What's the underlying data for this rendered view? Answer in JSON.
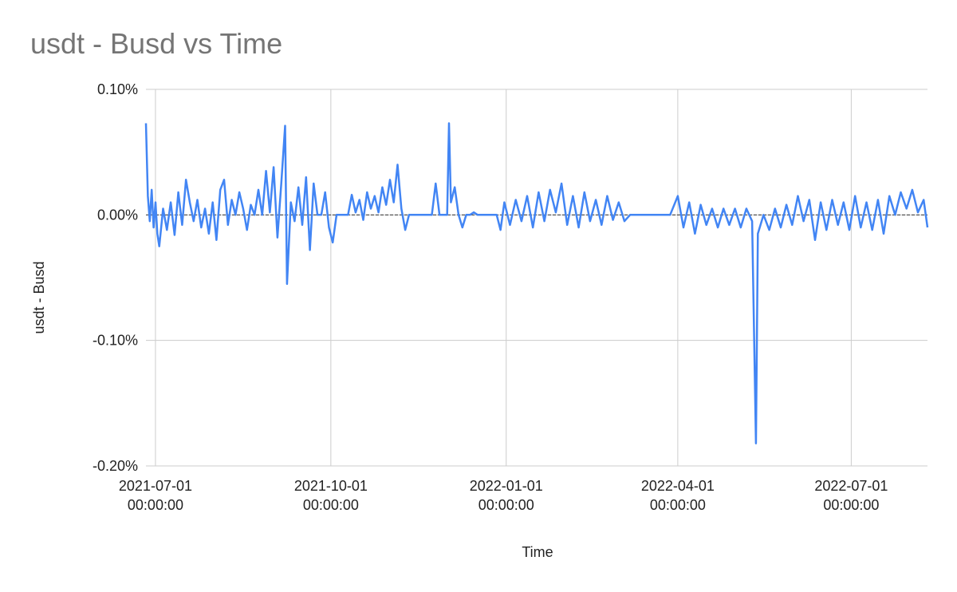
{
  "chart_data": {
    "type": "line",
    "title": "usdt - Busd vs Time",
    "xlabel": "Time",
    "ylabel": "usdt - Busd",
    "ylim": [
      -0.2,
      0.1
    ],
    "xlim": [
      "2021-06-26",
      "2022-08-10"
    ],
    "yticks": [
      {
        "value": 0.1,
        "label": "0.10%"
      },
      {
        "value": 0.0,
        "label": "0.00%"
      },
      {
        "value": -0.1,
        "label": "-0.10%"
      },
      {
        "value": -0.2,
        "label": "-0.20%"
      }
    ],
    "xticks": [
      {
        "date": "2021-07-01",
        "line1": "2021-07-01",
        "line2": "00:00:00"
      },
      {
        "date": "2021-10-01",
        "line1": "2021-10-01",
        "line2": "00:00:00"
      },
      {
        "date": "2022-01-01",
        "line1": "2022-01-01",
        "line2": "00:00:00"
      },
      {
        "date": "2022-04-01",
        "line1": "2022-04-01",
        "line2": "00:00:00"
      },
      {
        "date": "2022-07-01",
        "line1": "2022-07-01",
        "line2": "00:00:00"
      }
    ],
    "grid": true,
    "zero_line": true,
    "series": [
      {
        "color": "#4285f4",
        "points": [
          [
            "2021-06-26",
            0.073
          ],
          [
            "2021-06-27",
            0.015
          ],
          [
            "2021-06-28",
            -0.005
          ],
          [
            "2021-06-29",
            0.02
          ],
          [
            "2021-06-30",
            -0.01
          ],
          [
            "2021-07-01",
            0.01
          ],
          [
            "2021-07-02",
            -0.015
          ],
          [
            "2021-07-03",
            -0.025
          ],
          [
            "2021-07-05",
            0.005
          ],
          [
            "2021-07-07",
            -0.012
          ],
          [
            "2021-07-09",
            0.01
          ],
          [
            "2021-07-11",
            -0.016
          ],
          [
            "2021-07-13",
            0.018
          ],
          [
            "2021-07-15",
            -0.008
          ],
          [
            "2021-07-17",
            0.028
          ],
          [
            "2021-07-19",
            0.01
          ],
          [
            "2021-07-21",
            -0.005
          ],
          [
            "2021-07-23",
            0.012
          ],
          [
            "2021-07-25",
            -0.01
          ],
          [
            "2021-07-27",
            0.005
          ],
          [
            "2021-07-29",
            -0.015
          ],
          [
            "2021-07-31",
            0.01
          ],
          [
            "2021-08-02",
            -0.02
          ],
          [
            "2021-08-04",
            0.02
          ],
          [
            "2021-08-06",
            0.028
          ],
          [
            "2021-08-08",
            -0.008
          ],
          [
            "2021-08-10",
            0.012
          ],
          [
            "2021-08-12",
            0.0
          ],
          [
            "2021-08-14",
            0.018
          ],
          [
            "2021-08-16",
            0.005
          ],
          [
            "2021-08-18",
            -0.012
          ],
          [
            "2021-08-20",
            0.008
          ],
          [
            "2021-08-22",
            0.0
          ],
          [
            "2021-08-24",
            0.02
          ],
          [
            "2021-08-26",
            0.0
          ],
          [
            "2021-08-28",
            0.035
          ],
          [
            "2021-08-30",
            0.002
          ],
          [
            "2021-09-01",
            0.038
          ],
          [
            "2021-09-03",
            -0.018
          ],
          [
            "2021-09-05",
            0.025
          ],
          [
            "2021-09-07",
            0.071
          ],
          [
            "2021-09-08",
            -0.055
          ],
          [
            "2021-09-10",
            0.01
          ],
          [
            "2021-09-12",
            -0.005
          ],
          [
            "2021-09-14",
            0.022
          ],
          [
            "2021-09-16",
            -0.008
          ],
          [
            "2021-09-18",
            0.03
          ],
          [
            "2021-09-20",
            -0.028
          ],
          [
            "2021-09-22",
            0.025
          ],
          [
            "2021-09-24",
            0.0
          ],
          [
            "2021-09-26",
            0.0
          ],
          [
            "2021-09-28",
            0.018
          ],
          [
            "2021-09-30",
            -0.01
          ],
          [
            "2021-10-02",
            -0.022
          ],
          [
            "2021-10-04",
            0.0
          ],
          [
            "2021-10-06",
            0.0
          ],
          [
            "2021-10-08",
            0.0
          ],
          [
            "2021-10-10",
            0.0
          ],
          [
            "2021-10-12",
            0.016
          ],
          [
            "2021-10-14",
            0.002
          ],
          [
            "2021-10-16",
            0.012
          ],
          [
            "2021-10-18",
            -0.004
          ],
          [
            "2021-10-20",
            0.018
          ],
          [
            "2021-10-22",
            0.005
          ],
          [
            "2021-10-24",
            0.015
          ],
          [
            "2021-10-26",
            0.002
          ],
          [
            "2021-10-28",
            0.022
          ],
          [
            "2021-10-30",
            0.008
          ],
          [
            "2021-11-01",
            0.028
          ],
          [
            "2021-11-03",
            0.01
          ],
          [
            "2021-11-05",
            0.04
          ],
          [
            "2021-11-07",
            0.005
          ],
          [
            "2021-11-09",
            -0.012
          ],
          [
            "2021-11-11",
            0.0
          ],
          [
            "2021-11-13",
            0.0
          ],
          [
            "2021-11-15",
            0.0
          ],
          [
            "2021-11-17",
            0.0
          ],
          [
            "2021-11-19",
            0.0
          ],
          [
            "2021-11-21",
            0.0
          ],
          [
            "2021-11-23",
            0.0
          ],
          [
            "2021-11-25",
            0.025
          ],
          [
            "2021-11-27",
            0.0
          ],
          [
            "2021-11-29",
            0.0
          ],
          [
            "2021-12-01",
            0.0
          ],
          [
            "2021-12-02",
            0.073
          ],
          [
            "2021-12-03",
            0.01
          ],
          [
            "2021-12-05",
            0.022
          ],
          [
            "2021-12-07",
            0.0
          ],
          [
            "2021-12-09",
            -0.01
          ],
          [
            "2021-12-11",
            0.0
          ],
          [
            "2021-12-13",
            0.0
          ],
          [
            "2021-12-15",
            0.002
          ],
          [
            "2021-12-17",
            0.0
          ],
          [
            "2021-12-19",
            0.0
          ],
          [
            "2021-12-21",
            0.0
          ],
          [
            "2021-12-23",
            0.0
          ],
          [
            "2021-12-25",
            0.0
          ],
          [
            "2021-12-27",
            0.0
          ],
          [
            "2021-12-29",
            -0.012
          ],
          [
            "2021-12-31",
            0.01
          ],
          [
            "2022-01-03",
            -0.008
          ],
          [
            "2022-01-06",
            0.012
          ],
          [
            "2022-01-09",
            -0.005
          ],
          [
            "2022-01-12",
            0.015
          ],
          [
            "2022-01-15",
            -0.01
          ],
          [
            "2022-01-18",
            0.018
          ],
          [
            "2022-01-21",
            -0.005
          ],
          [
            "2022-01-24",
            0.02
          ],
          [
            "2022-01-27",
            0.002
          ],
          [
            "2022-01-30",
            0.025
          ],
          [
            "2022-02-02",
            -0.008
          ],
          [
            "2022-02-05",
            0.015
          ],
          [
            "2022-02-08",
            -0.01
          ],
          [
            "2022-02-11",
            0.018
          ],
          [
            "2022-02-14",
            -0.005
          ],
          [
            "2022-02-17",
            0.012
          ],
          [
            "2022-02-20",
            -0.008
          ],
          [
            "2022-02-23",
            0.015
          ],
          [
            "2022-02-26",
            -0.004
          ],
          [
            "2022-03-01",
            0.01
          ],
          [
            "2022-03-04",
            -0.005
          ],
          [
            "2022-03-07",
            0.0
          ],
          [
            "2022-03-10",
            0.0
          ],
          [
            "2022-03-13",
            0.0
          ],
          [
            "2022-03-16",
            0.0
          ],
          [
            "2022-03-19",
            0.0
          ],
          [
            "2022-03-22",
            0.0
          ],
          [
            "2022-03-25",
            0.0
          ],
          [
            "2022-03-28",
            0.0
          ],
          [
            "2022-04-01",
            0.015
          ],
          [
            "2022-04-04",
            -0.01
          ],
          [
            "2022-04-07",
            0.01
          ],
          [
            "2022-04-10",
            -0.015
          ],
          [
            "2022-04-13",
            0.008
          ],
          [
            "2022-04-16",
            -0.008
          ],
          [
            "2022-04-19",
            0.005
          ],
          [
            "2022-04-22",
            -0.01
          ],
          [
            "2022-04-25",
            0.005
          ],
          [
            "2022-04-28",
            -0.008
          ],
          [
            "2022-05-01",
            0.005
          ],
          [
            "2022-05-04",
            -0.01
          ],
          [
            "2022-05-07",
            0.005
          ],
          [
            "2022-05-10",
            -0.005
          ],
          [
            "2022-05-12",
            -0.182
          ],
          [
            "2022-05-13",
            -0.015
          ],
          [
            "2022-05-16",
            0.0
          ],
          [
            "2022-05-19",
            -0.012
          ],
          [
            "2022-05-22",
            0.005
          ],
          [
            "2022-05-25",
            -0.01
          ],
          [
            "2022-05-28",
            0.008
          ],
          [
            "2022-05-31",
            -0.008
          ],
          [
            "2022-06-03",
            0.015
          ],
          [
            "2022-06-06",
            -0.005
          ],
          [
            "2022-06-09",
            0.012
          ],
          [
            "2022-06-12",
            -0.02
          ],
          [
            "2022-06-15",
            0.01
          ],
          [
            "2022-06-18",
            -0.012
          ],
          [
            "2022-06-21",
            0.012
          ],
          [
            "2022-06-24",
            -0.008
          ],
          [
            "2022-06-27",
            0.01
          ],
          [
            "2022-06-30",
            -0.012
          ],
          [
            "2022-07-03",
            0.015
          ],
          [
            "2022-07-06",
            -0.01
          ],
          [
            "2022-07-09",
            0.01
          ],
          [
            "2022-07-12",
            -0.012
          ],
          [
            "2022-07-15",
            0.012
          ],
          [
            "2022-07-18",
            -0.015
          ],
          [
            "2022-07-21",
            0.015
          ],
          [
            "2022-07-24",
            0.0
          ],
          [
            "2022-07-27",
            0.018
          ],
          [
            "2022-07-30",
            0.005
          ],
          [
            "2022-08-02",
            0.02
          ],
          [
            "2022-08-05",
            0.002
          ],
          [
            "2022-08-08",
            0.012
          ],
          [
            "2022-08-10",
            -0.01
          ]
        ]
      }
    ]
  }
}
